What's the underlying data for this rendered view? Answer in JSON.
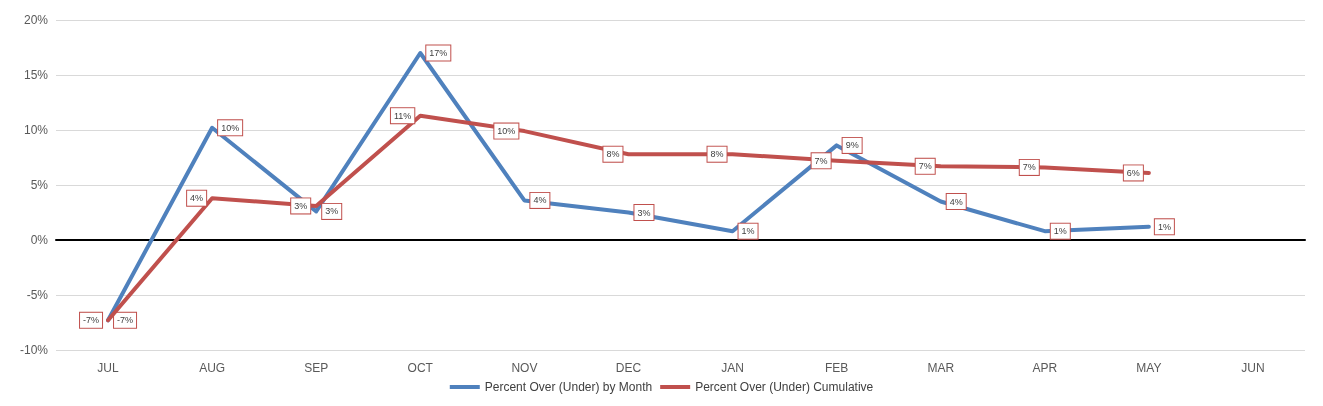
{
  "chart_data": {
    "type": "line",
    "categories": [
      "JUL",
      "AUG",
      "SEP",
      "OCT",
      "NOV",
      "DEC",
      "JAN",
      "FEB",
      "MAR",
      "APR",
      "MAY",
      "JUN"
    ],
    "series": [
      {
        "name": "Percent Over (Under) by Month",
        "color": "#4f81bd",
        "values": [
          -7.3,
          10.2,
          2.6,
          17,
          3.6,
          2.5,
          0.8,
          8.6,
          3.5,
          0.8,
          1.2,
          null
        ],
        "value_labels": [
          "-7%",
          "10%",
          "3%",
          "17%",
          "4%",
          "3%",
          "1%",
          "9%",
          "4%",
          "1%",
          "1%",
          null
        ]
      },
      {
        "name": "Percent Over (Under) Cumulative",
        "color": "#c0504d",
        "values": [
          -7.3,
          3.8,
          3.1,
          11.3,
          9.9,
          7.8,
          7.8,
          7.2,
          6.7,
          6.6,
          6.1,
          null
        ],
        "value_labels": [
          "-7%",
          "4%",
          "3%",
          "11%",
          "10%",
          "8%",
          "8%",
          "7%",
          "7%",
          "7%",
          "6%",
          null
        ]
      }
    ],
    "ylim": [
      -10,
      20
    ],
    "yticks": [
      {
        "value": -10,
        "label": "-10%"
      },
      {
        "value": -5,
        "label": "-5%"
      },
      {
        "value": 0,
        "label": "0%"
      },
      {
        "value": 5,
        "label": "5%"
      },
      {
        "value": 10,
        "label": "10%"
      },
      {
        "value": 15,
        "label": "15%"
      },
      {
        "value": 20,
        "label": "20%"
      }
    ],
    "grid": "y",
    "legend": "bottom",
    "marker": "none",
    "line_style": "solid"
  }
}
